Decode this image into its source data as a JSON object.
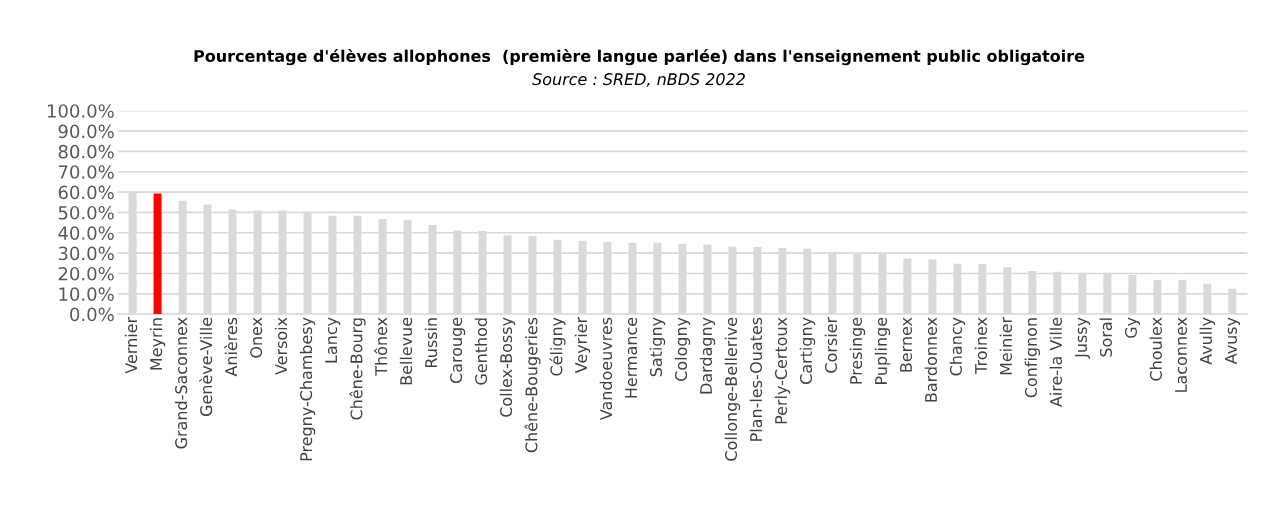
{
  "chart_data": {
    "type": "bar",
    "title": "Pourcentage d'élèves allophones  (première langue parlée) dans l'enseignement public obligatoire",
    "subtitle": "Source : SRED, nBDS 2022",
    "categories": [
      "Vernier",
      "Meyrin",
      "Grand-Saconnex",
      "Genève-Ville",
      "Anières",
      "Onex",
      "Versoix",
      "Pregny-Chambesy",
      "Lancy",
      "Chêne-Bourg",
      "Thônex",
      "Bellevue",
      "Russin",
      "Carouge",
      "Genthod",
      "Collex-Bossy",
      "Chêne-Bougeries",
      "Céligny",
      "Veyrier",
      "Vandoeuvres",
      "Hermance",
      "Satigny",
      "Cologny",
      "Dardagny",
      "Collonge-Bellerive",
      "Plan-les-Ouates",
      "Perly-Certoux",
      "Cartigny",
      "Corsier",
      "Presinge",
      "Puplinge",
      "Bernex",
      "Bardonnex",
      "Chancy",
      "Troinex",
      "Meinier",
      "Confignon",
      "Aire-la Ville",
      "Jussy",
      "Soral",
      "Gy",
      "Choulex",
      "Laconnex",
      "Avully",
      "Avusy"
    ],
    "values": [
      60.1,
      59.3,
      55.8,
      53.9,
      51.4,
      50.9,
      50.9,
      49.8,
      48.4,
      48.4,
      46.8,
      46.1,
      43.8,
      41.1,
      40.9,
      38.8,
      38.4,
      36.6,
      36.1,
      35.5,
      35.1,
      35.1,
      34.6,
      34.2,
      33.3,
      33.0,
      32.5,
      32.2,
      30.5,
      30.2,
      29.6,
      27.3,
      26.9,
      24.8,
      24.6,
      23.0,
      21.2,
      20.9,
      20.4,
      20.4,
      19.2,
      16.9,
      16.9,
      14.9,
      12.5
    ],
    "colors": [
      "#d9d9d9",
      "#ff0000",
      "#d9d9d9",
      "#d9d9d9",
      "#d9d9d9",
      "#d9d9d9",
      "#d9d9d9",
      "#d9d9d9",
      "#d9d9d9",
      "#d9d9d9",
      "#d9d9d9",
      "#d9d9d9",
      "#d9d9d9",
      "#d9d9d9",
      "#d9d9d9",
      "#d9d9d9",
      "#d9d9d9",
      "#d9d9d9",
      "#d9d9d9",
      "#d9d9d9",
      "#d9d9d9",
      "#d9d9d9",
      "#d9d9d9",
      "#d9d9d9",
      "#d9d9d9",
      "#d9d9d9",
      "#d9d9d9",
      "#d9d9d9",
      "#d9d9d9",
      "#d9d9d9",
      "#d9d9d9",
      "#d9d9d9",
      "#d9d9d9",
      "#d9d9d9",
      "#d9d9d9",
      "#d9d9d9",
      "#d9d9d9",
      "#d9d9d9",
      "#d9d9d9",
      "#d9d9d9",
      "#d9d9d9",
      "#d9d9d9",
      "#d9d9d9",
      "#d9d9d9",
      "#d9d9d9"
    ],
    "ylim": [
      0,
      100
    ],
    "yticks": [
      {
        "value": 0,
        "label": "0.0%"
      },
      {
        "value": 10,
        "label": "10.0%"
      },
      {
        "value": 20,
        "label": "20.0%"
      },
      {
        "value": 30,
        "label": "30.0%"
      },
      {
        "value": 40,
        "label": "40.0%"
      },
      {
        "value": 50,
        "label": "50.0%"
      },
      {
        "value": 60,
        "label": "60.0%"
      },
      {
        "value": 70,
        "label": "70.0%"
      },
      {
        "value": 80,
        "label": "80.0%"
      },
      {
        "value": 90,
        "label": "90.0%"
      },
      {
        "value": 100,
        "label": "100.0%"
      }
    ],
    "grid": "y",
    "legend": false
  }
}
